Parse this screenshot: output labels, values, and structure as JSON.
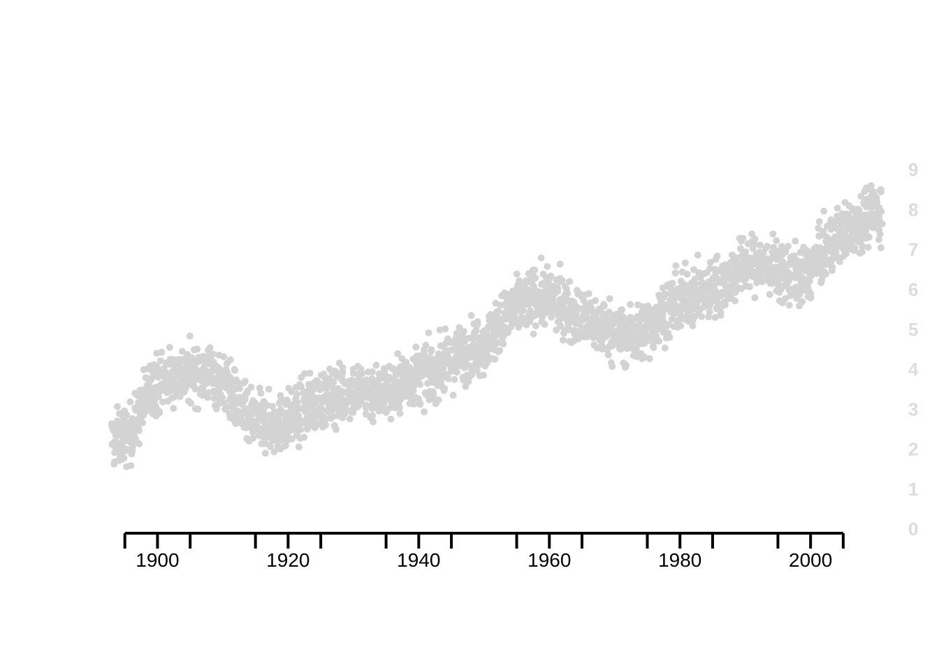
{
  "chart_data": {
    "type": "scatter",
    "title": "",
    "xlabel": "",
    "ylabel": "",
    "x_ticks": [
      {
        "value": 1900,
        "label": "1900"
      },
      {
        "value": 1920,
        "label": "1920"
      },
      {
        "value": 1940,
        "label": "1940"
      },
      {
        "value": 1960,
        "label": "1960"
      },
      {
        "value": 1980,
        "label": "1980"
      },
      {
        "value": 2000,
        "label": "2000"
      }
    ],
    "x_minor_ticks": [
      1895,
      1905,
      1915,
      1925,
      1935,
      1945,
      1955,
      1965,
      1975,
      1985,
      1995,
      2005
    ],
    "y_ticks": [
      {
        "value": 0,
        "label": "0"
      },
      {
        "value": 1,
        "label": "1"
      },
      {
        "value": 2,
        "label": "2"
      },
      {
        "value": 3,
        "label": "3"
      },
      {
        "value": 4,
        "label": "4"
      },
      {
        "value": 5,
        "label": "5"
      },
      {
        "value": 6,
        "label": "6"
      },
      {
        "value": 7,
        "label": "7"
      },
      {
        "value": 8,
        "label": "8"
      },
      {
        "value": 9,
        "label": "9"
      }
    ],
    "xlim": [
      1893,
      2011
    ],
    "ylim": [
      0,
      9.5
    ],
    "grid": false,
    "colors": {
      "points": "#d3d3d3",
      "y_labels": "#dcdcdc",
      "axis": "#000000"
    },
    "series": [
      {
        "trend": [
          [
            1893,
            2.2
          ],
          [
            1896,
            2.4
          ],
          [
            1899,
            3.6
          ],
          [
            1902,
            3.8
          ],
          [
            1905,
            3.9
          ],
          [
            1908,
            3.9
          ],
          [
            1911,
            3.5
          ],
          [
            1914,
            2.7
          ],
          [
            1918,
            2.6
          ],
          [
            1921,
            2.8
          ],
          [
            1924,
            3.2
          ],
          [
            1927,
            3.3
          ],
          [
            1930,
            3.5
          ],
          [
            1933,
            3.4
          ],
          [
            1936,
            3.5
          ],
          [
            1939,
            3.8
          ],
          [
            1942,
            3.9
          ],
          [
            1945,
            4.2
          ],
          [
            1948,
            4.5
          ],
          [
            1951,
            4.8
          ],
          [
            1954,
            5.4
          ],
          [
            1957,
            5.8
          ],
          [
            1960,
            5.8
          ],
          [
            1963,
            5.5
          ],
          [
            1966,
            5.2
          ],
          [
            1969,
            5.0
          ],
          [
            1972,
            4.8
          ],
          [
            1975,
            5.0
          ],
          [
            1978,
            5.5
          ],
          [
            1981,
            5.8
          ],
          [
            1984,
            5.9
          ],
          [
            1987,
            6.2
          ],
          [
            1990,
            6.6
          ],
          [
            1993,
            6.6
          ],
          [
            1996,
            6.4
          ],
          [
            1999,
            6.3
          ],
          [
            2002,
            6.9
          ],
          [
            2005,
            7.4
          ],
          [
            2008,
            7.8
          ],
          [
            2011,
            8.0
          ]
        ],
        "spread": 0.35
      }
    ]
  }
}
